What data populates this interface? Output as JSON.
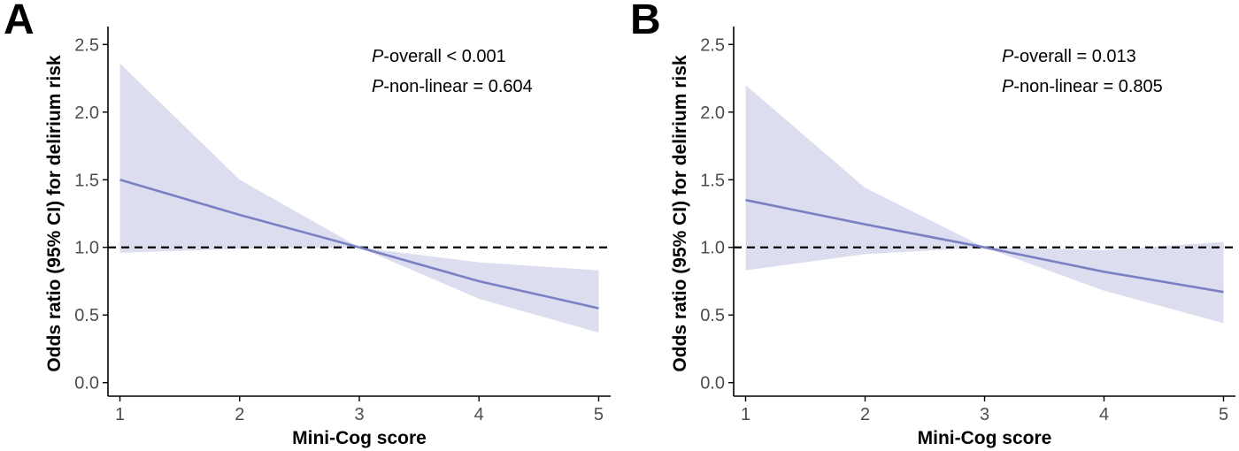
{
  "chart_data": [
    {
      "panel_label": "A",
      "type": "line",
      "xlabel": "Mini-Cog score",
      "ylabel": "Odds ratio (95% CI) for delirium risk",
      "xlim": [
        0.9,
        5.1
      ],
      "ylim": [
        -0.1,
        2.6
      ],
      "x_ticks": [
        1,
        2,
        3,
        4,
        5
      ],
      "y_ticks": [
        0.0,
        0.5,
        1.0,
        1.5,
        2.0,
        2.5
      ],
      "y_tick_labels": [
        "0.0",
        "0.5",
        "1.0",
        "1.5",
        "2.0",
        "2.5"
      ],
      "x": [
        1,
        2,
        3,
        4,
        5
      ],
      "series": [
        {
          "values": [
            1.5,
            1.24,
            1.0,
            0.75,
            0.55
          ]
        }
      ],
      "ci_lower": [
        0.96,
        0.99,
        1.0,
        0.62,
        0.37
      ],
      "ci_upper": [
        2.36,
        1.5,
        1.0,
        0.89,
        0.83
      ],
      "reference_line": 1.0,
      "annotations": [
        {
          "italic": "P",
          "text": "-overall < 0.001"
        },
        {
          "italic": "P",
          "text": "-non-linear = 0.604"
        }
      ],
      "colors": {
        "line": "#7b80c4",
        "band": "#dcdeef",
        "reference": "#000000"
      },
      "grid": false
    },
    {
      "panel_label": "B",
      "type": "line",
      "xlabel": "Mini-Cog score",
      "ylabel": "Odds ratio (95% CI) for delirium risk",
      "xlim": [
        0.9,
        5.1
      ],
      "ylim": [
        -0.1,
        2.6
      ],
      "x_ticks": [
        1,
        2,
        3,
        4,
        5
      ],
      "y_ticks": [
        0.0,
        0.5,
        1.0,
        1.5,
        2.0,
        2.5
      ],
      "y_tick_labels": [
        "0.0",
        "0.5",
        "1.0",
        "1.5",
        "2.0",
        "2.5"
      ],
      "x": [
        1,
        2,
        3,
        4,
        5
      ],
      "series": [
        {
          "values": [
            1.35,
            1.17,
            1.0,
            0.82,
            0.67
          ]
        }
      ],
      "ci_lower": [
        0.83,
        0.95,
        1.0,
        0.68,
        0.44
      ],
      "ci_upper": [
        2.2,
        1.44,
        1.0,
        0.98,
        1.04
      ],
      "reference_line": 1.0,
      "annotations": [
        {
          "italic": "P",
          "text": "-overall = 0.013"
        },
        {
          "italic": "P",
          "text": "-non-linear = 0.805"
        }
      ],
      "colors": {
        "line": "#7b80c4",
        "band": "#dcdeef",
        "reference": "#000000"
      },
      "grid": false
    }
  ]
}
